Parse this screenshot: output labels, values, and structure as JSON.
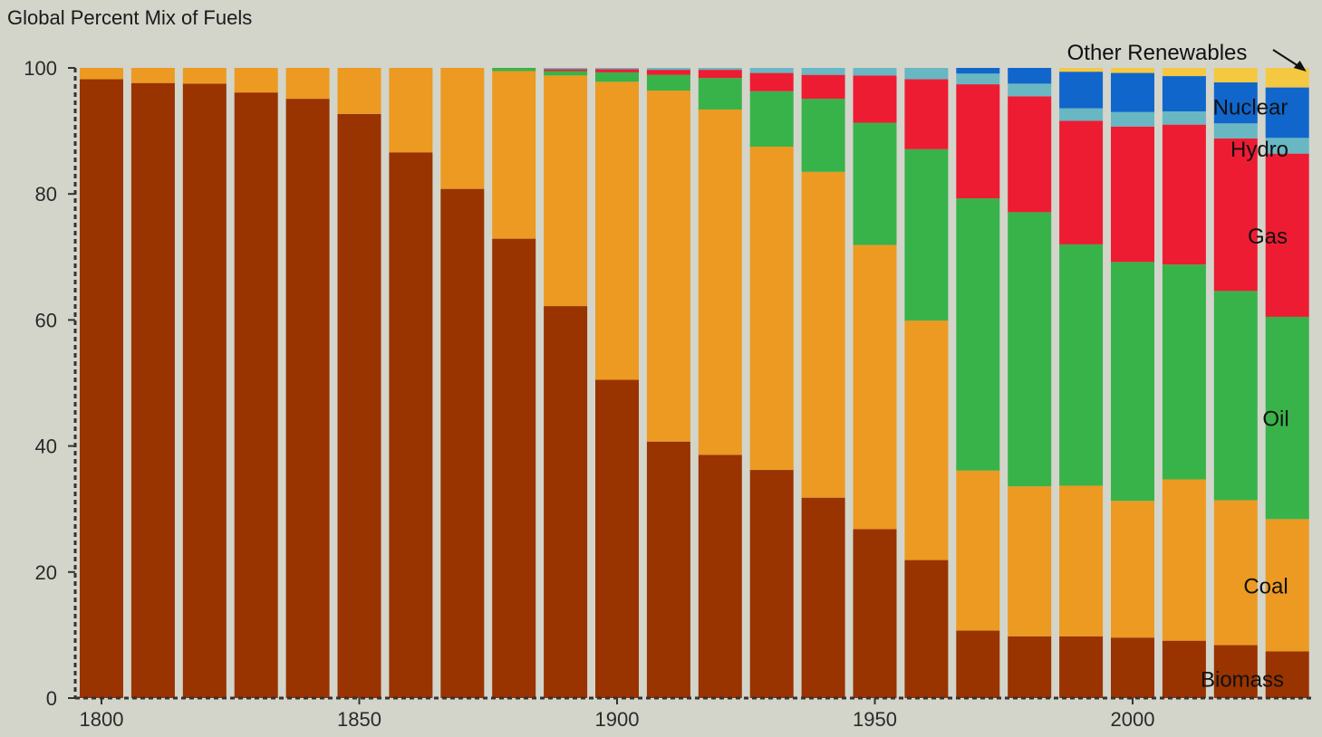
{
  "chart_data": {
    "type": "bar",
    "stacked": true,
    "title": "Global Percent Mix of Fuels",
    "xlabel": "",
    "ylabel": "",
    "ylim": [
      0,
      100
    ],
    "y_ticks": [
      "0",
      "20",
      "40",
      "60",
      "80",
      "100"
    ],
    "x_ticks": [
      "1800",
      "1850",
      "1900",
      "1950",
      "2000"
    ],
    "x_tick_values": [
      1800,
      1850,
      1900,
      1950,
      2000
    ],
    "categories": [
      1800,
      1810,
      1820,
      1830,
      1840,
      1850,
      1860,
      1870,
      1880,
      1890,
      1900,
      1910,
      1920,
      1930,
      1940,
      1950,
      1960,
      1970,
      1980,
      1990,
      2000,
      2010,
      2020,
      2030
    ],
    "series": [
      {
        "name": "Biomass",
        "color": "#993300",
        "values": [
          98.2,
          97.6,
          97.5,
          96.1,
          95.1,
          92.7,
          86.6,
          80.8,
          72.9,
          62.2,
          50.5,
          40.7,
          38.6,
          36.2,
          31.8,
          26.8,
          21.9,
          10.7,
          9.8,
          9.8,
          9.6,
          9.1,
          8.4,
          7.4
        ]
      },
      {
        "name": "Coal",
        "color": "#ec9a22",
        "values": [
          1.8,
          2.4,
          2.5,
          3.9,
          4.9,
          7.3,
          13.4,
          19.2,
          26.6,
          36.6,
          47.3,
          55.7,
          54.8,
          51.3,
          51.7,
          45.1,
          38.0,
          25.4,
          23.8,
          23.9,
          21.7,
          25.6,
          23.0,
          21.0
        ]
      },
      {
        "name": "Oil",
        "color": "#38b34a",
        "values": [
          0,
          0,
          0,
          0,
          0,
          0,
          0,
          0,
          0.5,
          0.7,
          1.5,
          2.5,
          5.0,
          8.8,
          11.6,
          19.4,
          27.2,
          43.2,
          43.5,
          38.3,
          37.9,
          34.1,
          33.2,
          32.1
        ]
      },
      {
        "name": "Gas",
        "color": "#ed1c33",
        "values": [
          0,
          0,
          0,
          0,
          0,
          0,
          0,
          0,
          0,
          0.3,
          0.5,
          0.8,
          1.3,
          2.9,
          3.8,
          7.5,
          11.1,
          18.1,
          18.4,
          19.6,
          21.5,
          22.2,
          24.2,
          25.9
        ]
      },
      {
        "name": "Hydro",
        "color": "#68b7c3",
        "values": [
          0,
          0,
          0,
          0,
          0,
          0,
          0,
          0,
          0,
          0.2,
          0.2,
          0.3,
          0.3,
          0.8,
          1.1,
          1.2,
          1.8,
          1.7,
          2.0,
          2.0,
          2.3,
          2.1,
          2.4,
          2.5
        ]
      },
      {
        "name": "Nuclear",
        "color": "#1166cc",
        "values": [
          0,
          0,
          0,
          0,
          0,
          0,
          0,
          0,
          0,
          0,
          0,
          0,
          0,
          0,
          0,
          0,
          0,
          0.9,
          2.5,
          5.8,
          6.2,
          5.6,
          6.5,
          8.0
        ]
      },
      {
        "name": "Other Renewables",
        "color": "#f5c842",
        "values": [
          0,
          0,
          0,
          0,
          0,
          0,
          0,
          0,
          0,
          0,
          0,
          0,
          0,
          0,
          0,
          0,
          0,
          0,
          0,
          0.6,
          0.8,
          1.3,
          2.3,
          3.1
        ]
      }
    ],
    "legend_placement": "inline-right",
    "legend_labels": [
      "Other Renewables",
      "Nuclear",
      "Hydro",
      "Gas",
      "Oil",
      "Coal",
      "Biomass"
    ],
    "grid": false
  }
}
